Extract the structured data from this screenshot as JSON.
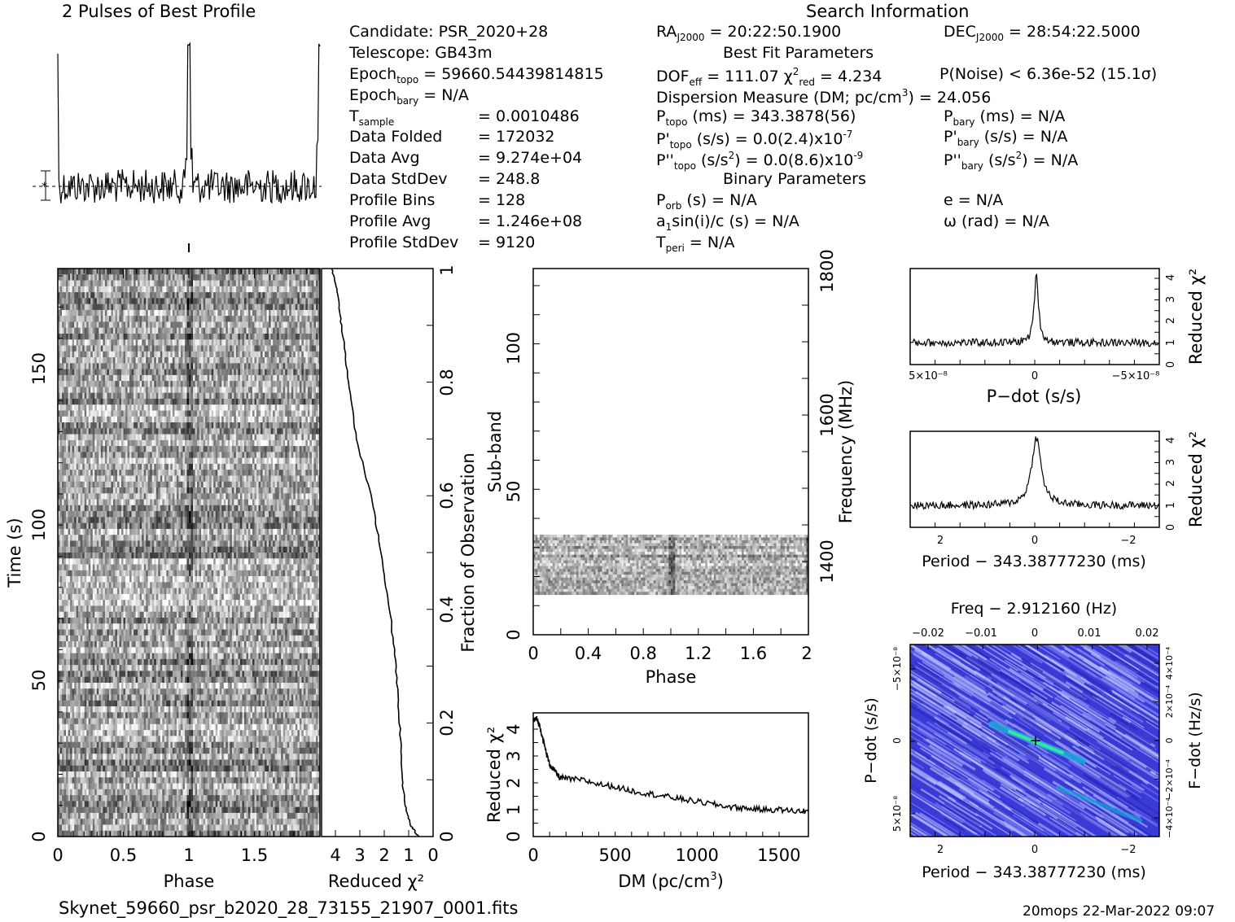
{
  "header": {
    "profile_title": "2 Pulses of Best Profile",
    "search_title": "Search Information",
    "best_fit_title": "Best Fit Parameters",
    "binary_title": "Binary Parameters"
  },
  "info": {
    "candidate": "Candidate:  PSR_2020+28",
    "telescope": "Telescope:  GB43m",
    "epoch_topo_label": "Epoch",
    "epoch_topo_sub": "topo",
    "epoch_topo_value": " = 59660.54439814815",
    "epoch_bary_label": "Epoch",
    "epoch_bary_sub": "bary",
    "epoch_bary_value": " = N/A",
    "t_sample_label": "T",
    "t_sample_sub": "sample",
    "t_sample_value": "=   0.0010486",
    "data_folded_label": "Data Folded",
    "data_folded_value": "=   172032",
    "data_avg_label": "Data Avg",
    "data_avg_value": "=   9.274e+04",
    "data_stddev_label": "Data StdDev",
    "data_stddev_value": "=   248.8",
    "profile_bins_label": "Profile Bins",
    "profile_bins_value": "=   128",
    "profile_avg_label": "Profile Avg",
    "profile_avg_value": "=   1.246e+08",
    "profile_stddev_label": "Profile StdDev",
    "profile_stddev_value": "=   9120"
  },
  "fit": {
    "ra_label": "RA",
    "ra_sub": "J2000",
    "ra_value": " = 20:22:50.1900",
    "dec_label": "DEC",
    "dec_sub": "J2000",
    "dec_value": " = 28:54:22.5000",
    "dof_label": "DOF",
    "dof_sub": "eff",
    "dof_value": " = 111.07  ",
    "chi_label": "χ",
    "chi_sup": "2",
    "chi_sub": "red",
    "chi_value": " = 4.234",
    "pnoise": "P(Noise) < 6.36e-52  (15.1σ)",
    "dm_pre": "Dispersion Measure (DM; pc/cm",
    "dm_sup": "3",
    "dm_post": ") = 24.056",
    "ptopo_label": "P",
    "ptopo_sub": "topo",
    "ptopo_value": " (ms) =  343.3878(56)",
    "pbary_label": "P",
    "pbary_sub": "bary",
    "pbary_value": " (ms) = N/A",
    "pdtopo_label": "P'",
    "pdtopo_sub": "topo",
    "pdtopo_value": " (s/s) = 0.0(2.4)x10",
    "pdtopo_sup": "-7",
    "pdbary_label": "P'",
    "pdbary_sub": "bary",
    "pdbary_value": " (s/s) = N/A",
    "pddtopo_label": "P''",
    "pddtopo_sub": "topo",
    "pddtopo_value": " (s/s",
    "pddtopo_sup": "2",
    "pddtopo_value2": ") = 0.0(8.6)x10",
    "pddtopo_sup2": "-9",
    "pddbary_label": "P''",
    "pddbary_sub": "bary",
    "pddbary_value": " (s/s",
    "pddbary_sup": "2",
    "pddbary_value2": ") = N/A",
    "porb_label": "P",
    "porb_sub": "orb",
    "porb_value": " (s) = N/A",
    "a1_label": "a",
    "a1_sub": "1",
    "a1_value": "sin(i)/c (s) = N/A",
    "tperi_label": "T",
    "tperi_sub": "peri",
    "tperi_value": " = N/A",
    "ecc": "e = N/A",
    "omega": "ω (rad) = N/A"
  },
  "footer": {
    "filename": "Skynet_59660_psr_b2020_28_73155_21907_0001.fits",
    "stamp": "20mops 22-Mar-2022 09:07"
  },
  "chart_data": [
    {
      "type": "line",
      "id": "profile",
      "x_range": [
        0,
        2
      ],
      "pulse_peaks_phase": [
        1.0,
        2.0
      ],
      "baseline_level": 0.0,
      "peak_level": 1.0,
      "errorbar_label": "*"
    },
    {
      "type": "heatmap",
      "id": "time-phase",
      "xlabel": "Phase",
      "ylabel": "Time (s)",
      "xlim": [
        0,
        2
      ],
      "ylim": [
        0,
        180
      ],
      "x_ticks": [
        "0",
        "0.5",
        "1",
        "1.5"
      ],
      "y_ticks": [
        "0",
        "50",
        "100",
        "150"
      ],
      "pulse_phase": 1.0,
      "colormap": "grayscale"
    },
    {
      "type": "line",
      "id": "chi2-vs-fraction",
      "xlabel": "Reduced χ²",
      "ylabel": "Fraction of Observation",
      "xlim": [
        4.5,
        0
      ],
      "ylim": [
        0,
        1
      ],
      "x_ticks": [
        "4",
        "3",
        "2",
        "1",
        "0"
      ],
      "y_ticks": [
        "0",
        "0.2",
        "0.4",
        "0.6",
        "0.8",
        "1"
      ],
      "fraction": [
        0,
        0.02,
        0.05,
        0.1,
        0.2,
        0.3,
        0.4,
        0.5,
        0.6,
        0.7,
        0.8,
        0.9,
        0.96,
        1.0
      ],
      "chi2": [
        0.6,
        0.9,
        1.1,
        1.25,
        1.35,
        1.5,
        1.75,
        2.1,
        2.5,
        3.1,
        3.4,
        3.7,
        3.85,
        4.1
      ]
    },
    {
      "type": "heatmap",
      "id": "subband-phase",
      "xlabel": "Phase",
      "ylabel": "Sub-band",
      "y2label": "Frequency (MHz)",
      "xlim": [
        0,
        2
      ],
      "ylim": [
        0,
        128
      ],
      "x_ticks": [
        "0",
        "0.4",
        "0.8",
        "1.2",
        "1.6",
        "2"
      ],
      "y_ticks": [
        "0",
        "50",
        "100"
      ],
      "y2_ticks": [
        "1400",
        "1600",
        "1800"
      ],
      "data_subbands": [
        14,
        35
      ],
      "colormap": "grayscale"
    },
    {
      "type": "line",
      "id": "chi2-vs-dm",
      "xlabel_pre": "DM (pc/cm",
      "xlabel_sup": "3",
      "xlabel_post": ")",
      "ylabel": "Reduced χ²",
      "xlim": [
        0,
        1680
      ],
      "ylim": [
        0,
        4.6
      ],
      "x_ticks": [
        "0",
        "500",
        "1000",
        "1500"
      ],
      "y_ticks": [
        "0",
        "1",
        "2",
        "3",
        "4"
      ],
      "x": [
        0,
        20,
        40,
        60,
        80,
        100,
        130,
        160,
        200,
        300,
        400,
        500,
        600,
        700,
        800,
        900,
        1000,
        1100,
        1200,
        1300,
        1400,
        1500,
        1600,
        1680
      ],
      "y": [
        4.3,
        4.4,
        4.1,
        3.6,
        3.1,
        2.7,
        2.45,
        2.2,
        2.15,
        2.1,
        1.95,
        1.85,
        1.7,
        1.6,
        1.5,
        1.4,
        1.3,
        1.2,
        1.1,
        1.05,
        1.0,
        1.0,
        0.95,
        0.95
      ]
    },
    {
      "type": "line",
      "id": "pdot-chi2",
      "xlabel": "P−dot (s/s)",
      "ylabel": "Reduced χ²",
      "xlim": [
        5e-08,
        -5e-08
      ],
      "ylim": [
        0,
        4.4
      ],
      "x_ticks": [
        "5×10⁻⁸",
        "0",
        "−5×10⁻⁸"
      ],
      "y_ticks": [
        "0",
        "1",
        "2",
        "3",
        "4"
      ],
      "peak_x": 0,
      "peak_y": 4.2,
      "baseline_y": 1.0
    },
    {
      "type": "line",
      "id": "period-chi2",
      "xlabel": "Period − 343.38777230 (ms)",
      "ylabel": "Reduced χ²",
      "xlim": [
        2.5,
        -2.5
      ],
      "ylim": [
        0,
        4.4
      ],
      "x_ticks": [
        "2",
        "0",
        "−2"
      ],
      "y_ticks": [
        "0",
        "1",
        "2",
        "3",
        "4"
      ],
      "peak_x": 0,
      "peak_y": 4.1,
      "baseline_y": 1.0
    },
    {
      "type": "heatmap",
      "id": "period-pdot",
      "title": "Freq − 2.912160 (Hz)",
      "xlabel": "Period − 343.38777230 (ms)",
      "ylabel": "P−dot (s/s)",
      "y2label": "F−dot (Hz/s)",
      "xlim": [
        2.5,
        -2.5
      ],
      "x_ticks": [
        "2",
        "0",
        "−2"
      ],
      "x2_ticks": [
        "−0.02",
        "−0.01",
        "0",
        "0.01",
        "0.02"
      ],
      "y_ticks": [
        "−5×10⁻⁸",
        "0",
        "5×10⁻⁸"
      ],
      "y2_ticks": [
        "−4×10⁻⁴",
        "−2×10⁻⁴",
        "0",
        "2×10⁻⁴",
        "4×10⁻⁴"
      ],
      "best_x": 0,
      "best_y": 0,
      "colormap": "blue-green"
    }
  ]
}
